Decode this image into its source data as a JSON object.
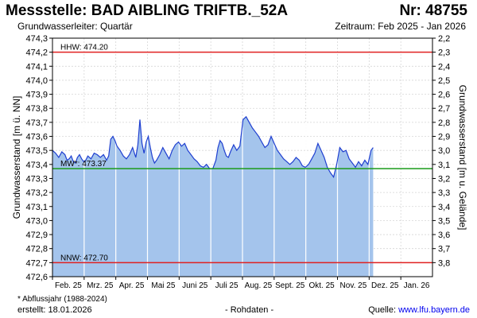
{
  "header": {
    "title": "Messstelle: BAD AIBLING TRIFTB._52A",
    "number": "Nr: 48755",
    "aquifer": "Grundwasserleiter: Quartär",
    "period": "Zeitraum: Feb 2025 - Jan 2026"
  },
  "footer": {
    "footnote": "* Abflussjahr (1988-2024)",
    "created": "erstellt:  18.01.2026",
    "raw": "- Rohdaten -",
    "source_label": "Quelle: ",
    "source_link": "www.lfu.bayern.de"
  },
  "colors": {
    "area_fill": "#a4c4ec",
    "series_line": "#1f3fd0",
    "hhw_line": "#e02020",
    "mw_line": "#1a9a1a",
    "nnw_line": "#e02020",
    "grid": "#d6d6d6",
    "month_divider": "#ffffff"
  },
  "chart_data": {
    "type": "area",
    "ylabel_left": "Grundwasserstand [m ü. NN]",
    "ylabel_right": "Grundwasserstand [m u. Gelände]",
    "ylim_left": [
      472.6,
      474.3
    ],
    "ylim_right": [
      2.2,
      3.9
    ],
    "y_right_inverted": true,
    "grid": true,
    "left_ticks": [
      "474,3",
      "474,2",
      "474,1",
      "474,0",
      "473,9",
      "473,8",
      "473,7",
      "473,6",
      "473,5",
      "473,4",
      "473,3",
      "473,2",
      "473,1",
      "473,0",
      "472,9",
      "472,8",
      "472,7",
      "472,6"
    ],
    "right_ticks": [
      "2,2",
      "2,3",
      "2,4",
      "2,5",
      "2,6",
      "2,7",
      "2,8",
      "2,9",
      "3,0",
      "3,1",
      "3,2",
      "3,3",
      "3,4",
      "3,5",
      "3,6",
      "3,7",
      "3,8"
    ],
    "x_month_labels": [
      "Feb. 25",
      "Mrz. 25",
      "Apr. 25",
      "Mai 25",
      "Juni 25",
      "Juli 25",
      "Aug. 25",
      "Sept. 25",
      "Okt. 25",
      "Nov. 25",
      "Dez. 25",
      "Jan. 26"
    ],
    "reference_lines": [
      {
        "label": "HHW: 474.20",
        "value": 474.2,
        "color": "#e02020"
      },
      {
        "label": "MW*: 473.37",
        "value": 473.37,
        "color": "#1a9a1a"
      },
      {
        "label": "NNW: 472.70",
        "value": 472.7,
        "color": "#e02020"
      }
    ],
    "series": [
      {
        "x_day": [
          0,
          3,
          6,
          9,
          12,
          14,
          16,
          18,
          20,
          22,
          24,
          26,
          28,
          30,
          32,
          34,
          37,
          40,
          43,
          46,
          49,
          52,
          54,
          56,
          58,
          60,
          62,
          65,
          68,
          71,
          74,
          77,
          80,
          82,
          84,
          86,
          88,
          90,
          92,
          94,
          96,
          98,
          100,
          103,
          106,
          109,
          112,
          115,
          118,
          121,
          124,
          127,
          130,
          133,
          136,
          139,
          142,
          145,
          148,
          151,
          154,
          157,
          159,
          161,
          163,
          165,
          167,
          169,
          171,
          174,
          177,
          180,
          183,
          186,
          189,
          192,
          195,
          198,
          201,
          204,
          207,
          210,
          213,
          216,
          219,
          222,
          225,
          228,
          231,
          234,
          237,
          240,
          243,
          246,
          249,
          252,
          255,
          258,
          261,
          264,
          267,
          270,
          273,
          276,
          279,
          282,
          285,
          288,
          291,
          294,
          297,
          300,
          303,
          306,
          308
        ],
        "values": [
          473.5,
          473.48,
          473.45,
          473.49,
          473.47,
          473.43,
          473.44,
          473.46,
          473.42,
          473.41,
          473.45,
          473.47,
          473.44,
          473.42,
          473.43,
          473.46,
          473.44,
          473.48,
          473.47,
          473.45,
          473.47,
          473.43,
          473.46,
          473.58,
          473.6,
          473.57,
          473.53,
          473.5,
          473.46,
          473.44,
          473.47,
          473.52,
          473.45,
          473.54,
          473.72,
          473.55,
          473.48,
          473.56,
          473.6,
          473.52,
          473.45,
          473.41,
          473.43,
          473.47,
          473.52,
          473.48,
          473.44,
          473.5,
          473.54,
          473.56,
          473.53,
          473.55,
          473.5,
          473.47,
          473.44,
          473.42,
          473.39,
          473.38,
          473.4,
          473.37,
          473.37,
          473.43,
          473.52,
          473.57,
          473.55,
          473.5,
          473.46,
          473.45,
          473.49,
          473.54,
          473.5,
          473.53,
          473.72,
          473.74,
          473.7,
          473.66,
          473.63,
          473.6,
          473.56,
          473.52,
          473.54,
          473.6,
          473.55,
          473.5,
          473.47,
          473.44,
          473.42,
          473.4,
          473.42,
          473.45,
          473.43,
          473.39,
          473.38,
          473.4,
          473.44,
          473.48,
          473.55,
          473.5,
          473.45,
          473.38,
          473.34,
          473.31,
          473.4,
          473.52,
          473.49,
          473.5,
          473.44,
          473.41,
          473.38,
          473.42,
          473.39,
          473.43,
          473.4,
          473.5,
          473.52
        ]
      }
    ]
  }
}
